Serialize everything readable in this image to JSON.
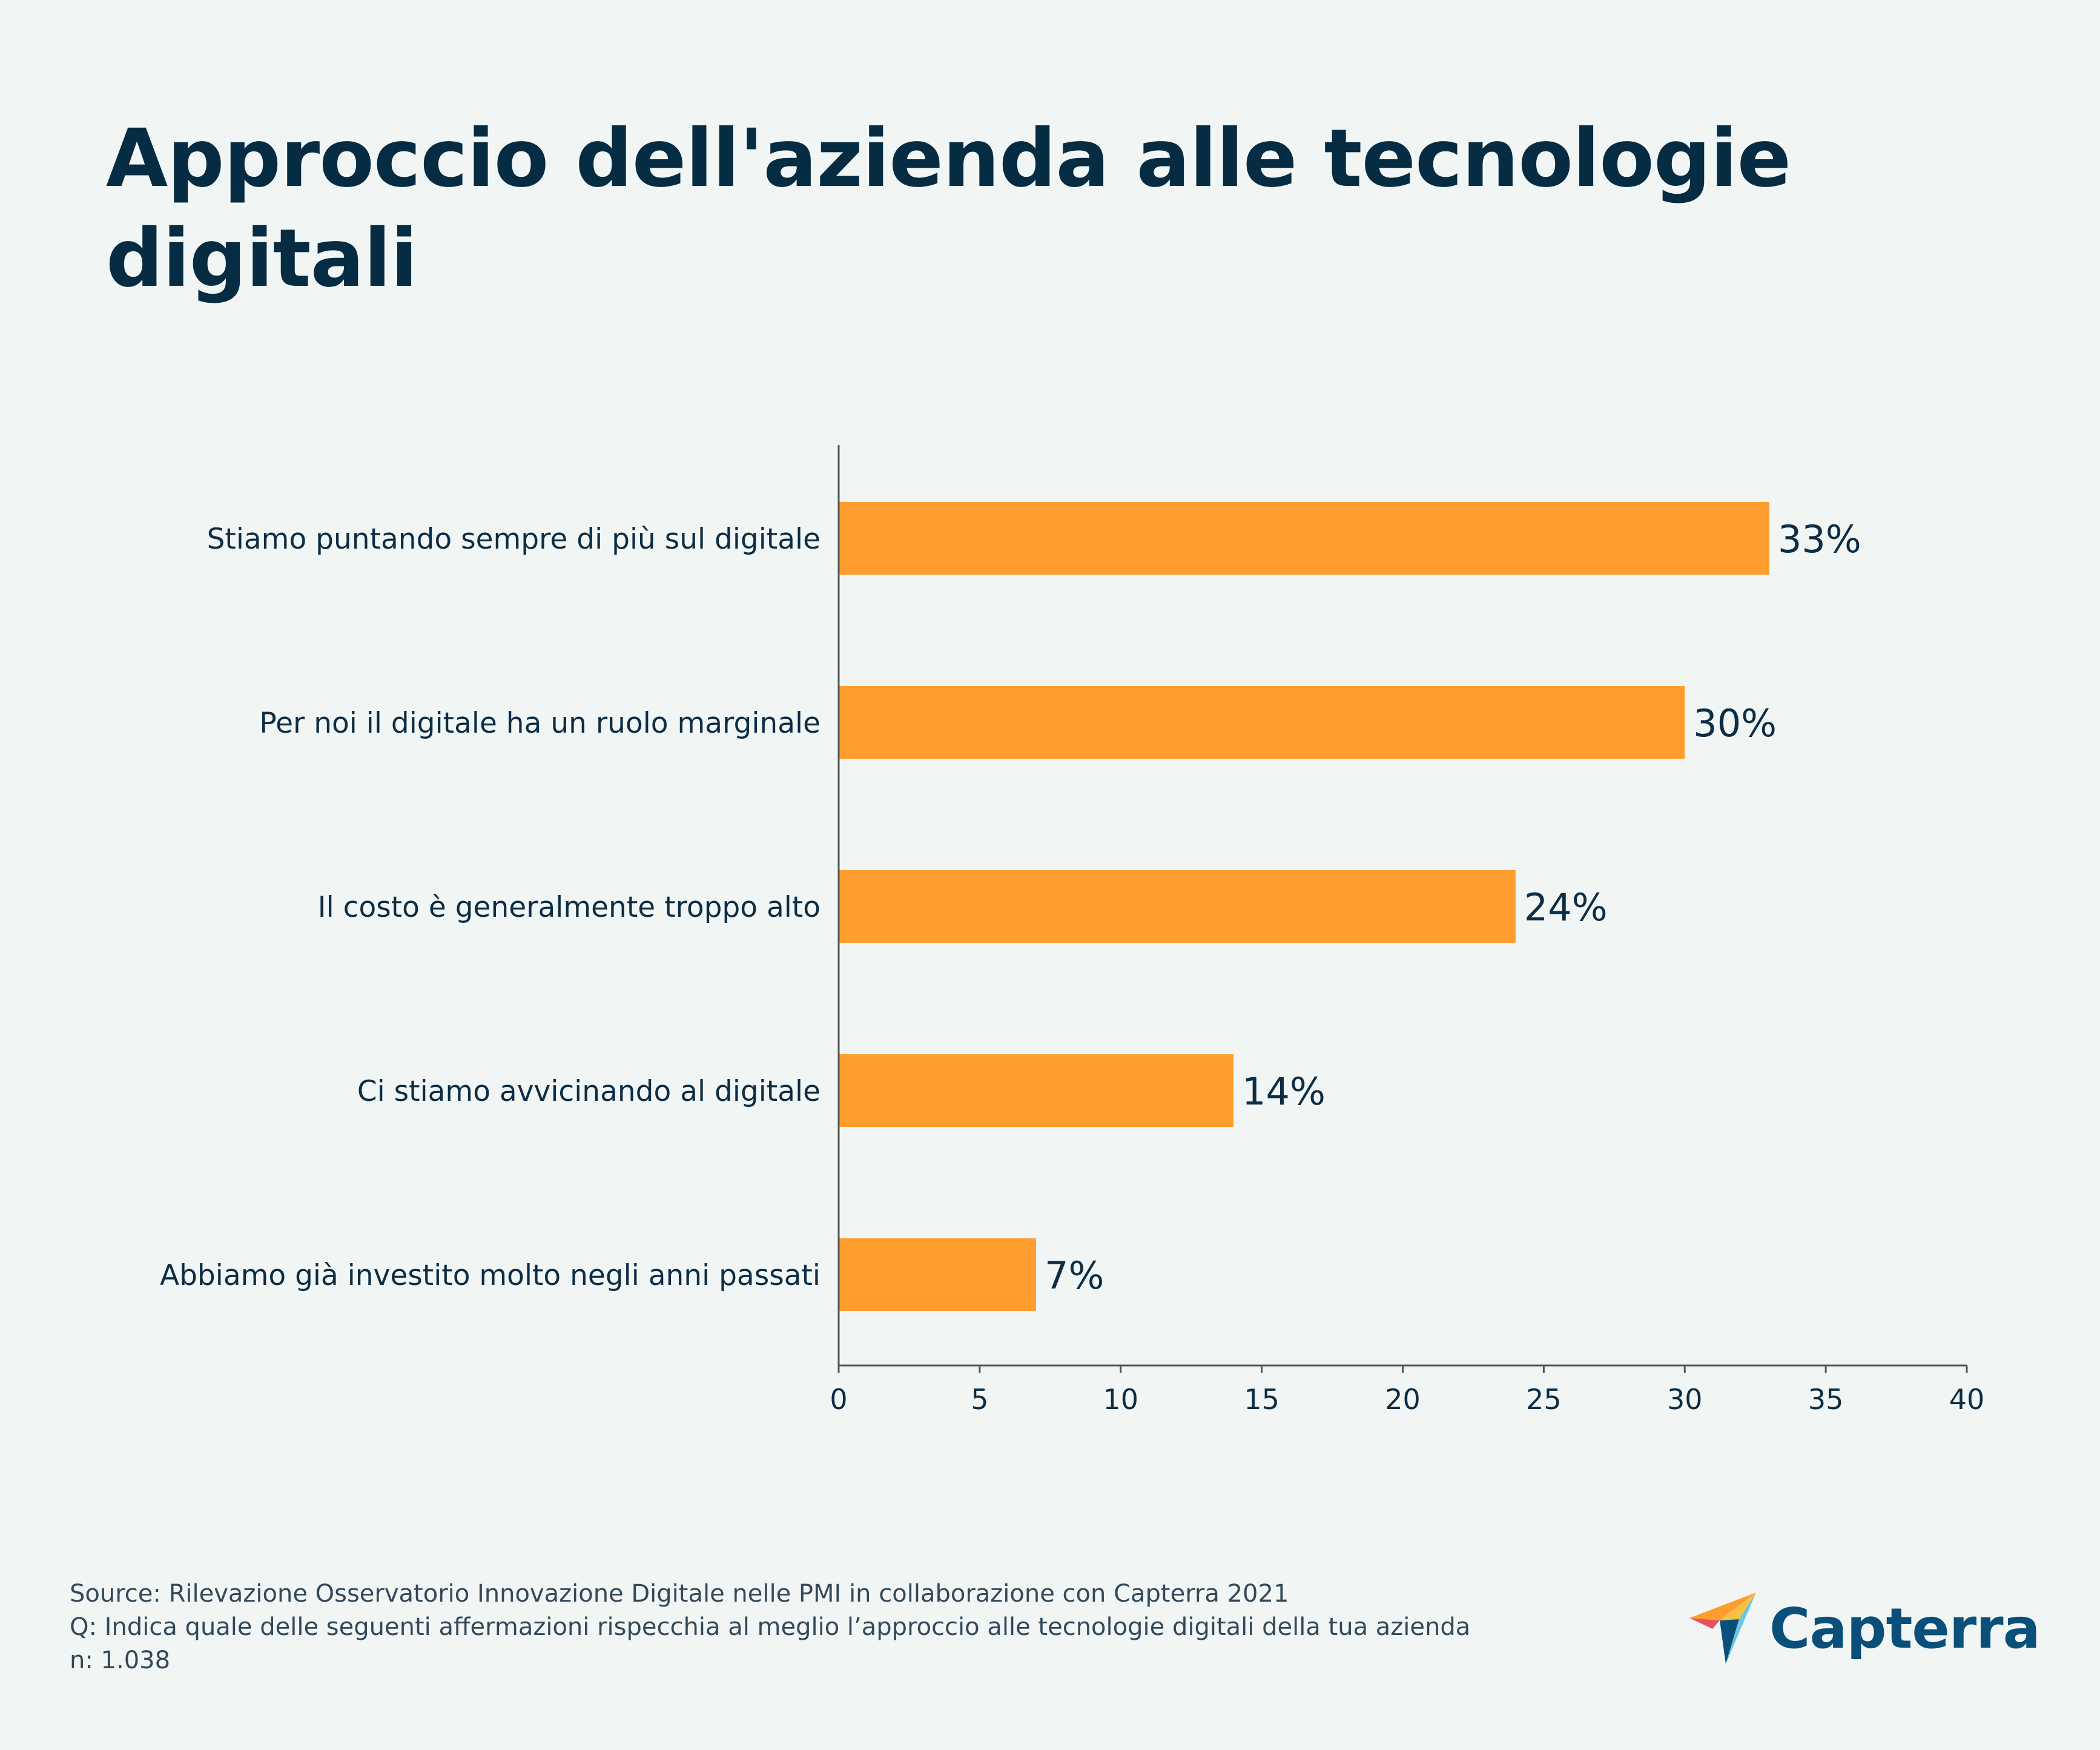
{
  "title": "Approccio dell'azienda alle tecnologie digitali",
  "chart_data": {
    "type": "bar",
    "orientation": "horizontal",
    "categories": [
      "Stiamo puntando sempre di più sul digitale",
      "Per noi il digitale ha un ruolo marginale",
      "Il costo è generalmente troppo alto",
      "Ci stiamo avvicinando al digitale",
      "Abbiamo già investito molto negli anni passati"
    ],
    "values": [
      33,
      30,
      24,
      14,
      7
    ],
    "data_labels": [
      "33%",
      "30%",
      "24%",
      "14%",
      "7%"
    ],
    "xlim": [
      0,
      40
    ],
    "xticks": [
      "0",
      "5",
      "10",
      "15",
      "20",
      "25",
      "30",
      "35",
      "40"
    ],
    "bar_color": "#ff9d2e",
    "axis_color": "#555555",
    "grid": false
  },
  "footer": {
    "source": "Source: Rilevazione Osservatorio Innovazione Digitale nelle PMI in collaborazione con Capterra 2021",
    "question": "Q: Indica quale delle seguenti affermazioni rispecchia al meglio l’approccio alle tecnologie digitali della tua azienda",
    "sample": "n: 1.038"
  },
  "logo": {
    "name": "Capterra",
    "icon": "capterra-arrow-icon"
  }
}
